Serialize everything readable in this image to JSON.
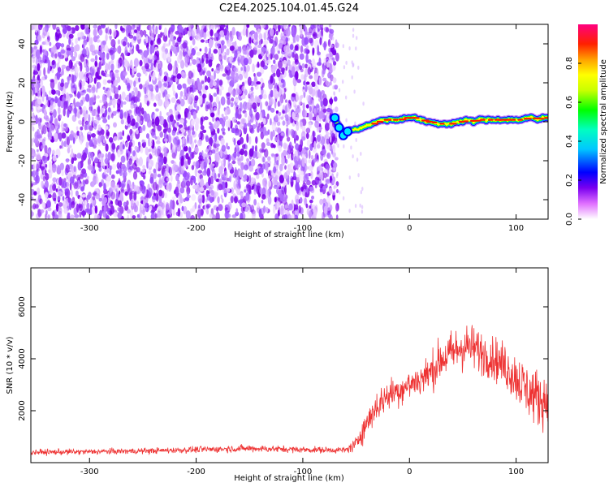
{
  "title": "C2E4.2025.104.01.45.G24",
  "chart_data": [
    {
      "type": "heatmap",
      "xlabel": "Height of straight line (km)",
      "ylabel": "Frequency (Hz)",
      "xlim": [
        -355,
        130
      ],
      "ylim": [
        -50,
        50
      ],
      "xticks": [
        -300,
        -200,
        -100,
        0,
        100
      ],
      "yticks": [
        -40,
        -20,
        0,
        20,
        40
      ],
      "colorbar": {
        "label": "Normalized spectral amplitude",
        "range": [
          0,
          1
        ],
        "ticks": [
          "0.0",
          "0.2",
          "0.4",
          "0.6",
          "0.8"
        ],
        "tick_values": [
          0.0,
          0.2,
          0.4,
          0.6,
          0.8
        ]
      },
      "noise_region": {
        "x_from": -355,
        "x_to": -72,
        "color": "#8a00f0"
      },
      "signal_track": {
        "x": [
          -72,
          -68,
          -65,
          -62,
          -60,
          -55,
          -50,
          -45,
          -40,
          -35,
          -30,
          -25,
          -20,
          -15,
          -10,
          -5,
          0,
          5,
          10,
          15,
          20,
          25,
          30,
          35,
          40,
          45,
          50,
          55,
          60,
          65,
          70,
          75,
          80,
          85,
          90,
          95,
          100,
          105,
          110,
          115,
          120,
          125,
          130
        ],
        "y": [
          2,
          0,
          -3,
          -6,
          -5,
          -4,
          -4,
          -3,
          -2,
          -1,
          0,
          1,
          1,
          1,
          1,
          2,
          2,
          2,
          1,
          0,
          0,
          -1,
          -1,
          -1,
          -1,
          0,
          0,
          1,
          0,
          1,
          1,
          1,
          1,
          1,
          1,
          1,
          1,
          1,
          2,
          2,
          1,
          2,
          2
        ],
        "amplitude": [
          0.3,
          0.35,
          0.4,
          0.45,
          0.5,
          0.55,
          0.6,
          0.7,
          0.75,
          0.8,
          0.85,
          0.9,
          0.9,
          0.9,
          0.9,
          0.9,
          0.85,
          0.9,
          0.9,
          0.9,
          0.95,
          0.95,
          0.95,
          0.95,
          0.95,
          0.95,
          0.95,
          0.95,
          0.95,
          0.95,
          0.95,
          0.95,
          0.95,
          0.95,
          0.95,
          0.95,
          0.95,
          0.95,
          0.95,
          0.95,
          0.95,
          0.95,
          0.95
        ]
      }
    },
    {
      "type": "line",
      "xlabel": "Height of straight line (km)",
      "ylabel": "SNR (10 * v/v)",
      "xlim": [
        -355,
        130
      ],
      "ylim": [
        0,
        7500
      ],
      "xticks": [
        -300,
        -200,
        -100,
        0,
        100
      ],
      "yticks": [
        2000,
        4000,
        6000
      ],
      "color": "#ee3333",
      "envelope": {
        "x": [
          -355,
          -300,
          -250,
          -200,
          -150,
          -100,
          -60,
          -50,
          -45,
          -40,
          -35,
          -30,
          -20,
          -10,
          0,
          10,
          20,
          30,
          40,
          50,
          60,
          70,
          80,
          90,
          100,
          110,
          120,
          130
        ],
        "mean": [
          400,
          420,
          450,
          500,
          550,
          500,
          480,
          700,
          1200,
          1500,
          1900,
          2200,
          2600,
          2800,
          3000,
          3200,
          3500,
          4000,
          4200,
          4500,
          4400,
          4200,
          4000,
          3700,
          3300,
          2800,
          2500,
          2400
        ],
        "spread": [
          200,
          200,
          200,
          220,
          250,
          220,
          220,
          500,
          900,
          1000,
          1000,
          1100,
          1100,
          1100,
          1100,
          1200,
          1300,
          1500,
          1600,
          1700,
          1600,
          1500,
          1500,
          1600,
          1800,
          1900,
          2000,
          1900
        ]
      }
    }
  ]
}
